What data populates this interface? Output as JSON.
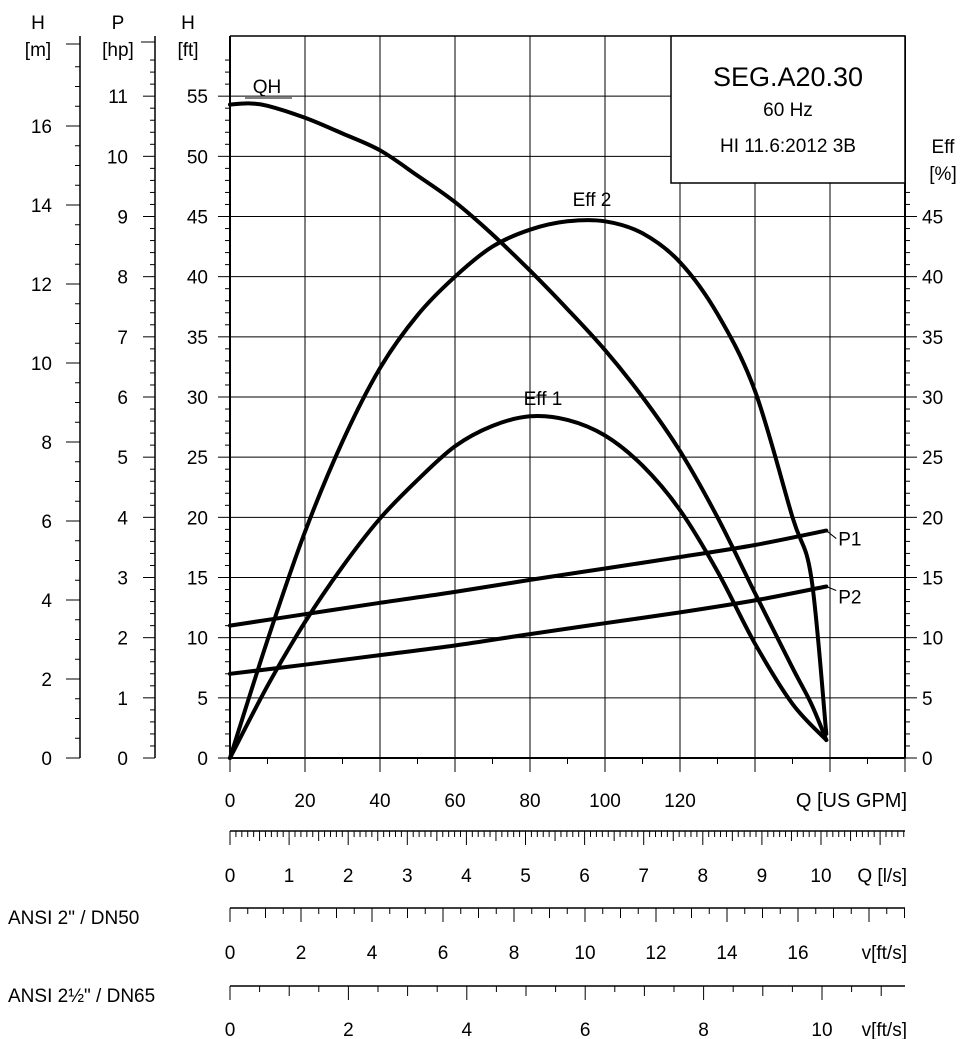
{
  "chart_data": {
    "type": "line",
    "title": "SEG.A20.30",
    "frequency": "60 Hz",
    "standard": "HI 11.6:2012 3B",
    "grid": true,
    "x": {
      "label": "Q [US GPM]",
      "ticks": [
        "0",
        "20",
        "40",
        "60",
        "80",
        "100",
        "120"
      ],
      "range": [
        0,
        180
      ]
    },
    "y_left": {
      "label_symbol": "H",
      "label_unit": "[ft]",
      "ticks": [
        "0",
        "5",
        "10",
        "15",
        "20",
        "25",
        "30",
        "35",
        "40",
        "45",
        "50",
        "55"
      ],
      "range": [
        0,
        60
      ]
    },
    "y_meters": {
      "label_symbol": "H",
      "label_unit": "[m]",
      "ticks": [
        "0",
        "2",
        "4",
        "6",
        "8",
        "10",
        "12",
        "14",
        "16"
      ]
    },
    "y_power": {
      "label_symbol": "P",
      "label_unit": "[hp]",
      "ticks": [
        "0",
        "1",
        "2",
        "3",
        "4",
        "5",
        "6",
        "7",
        "8",
        "9",
        "10",
        "11"
      ],
      "range": [
        0,
        12
      ]
    },
    "y_right": {
      "label_symbol": "Eff",
      "label_unit": "[%]",
      "ticks": [
        "0",
        "5",
        "10",
        "15",
        "20",
        "25",
        "30",
        "35",
        "40",
        "45"
      ],
      "range": [
        0,
        60
      ]
    },
    "series": [
      {
        "name": "QH",
        "axis": "ft",
        "x": [
          0,
          5,
          10,
          20,
          30,
          40,
          50,
          60,
          70,
          80,
          90,
          100,
          110,
          120,
          130,
          140,
          150,
          155,
          159
        ],
        "y": [
          54.3,
          54.4,
          54.2,
          53.2,
          51.9,
          50.5,
          48.4,
          46.2,
          43.5,
          40.5,
          37.3,
          33.9,
          30.0,
          25.5,
          20.0,
          13.7,
          7.5,
          4.5,
          1.5
        ]
      },
      {
        "name": "Eff 1",
        "axis": "percent",
        "x": [
          0,
          10,
          20,
          30,
          40,
          50,
          60,
          70,
          80,
          90,
          100,
          110,
          120,
          130,
          140,
          150,
          159
        ],
        "y": [
          0,
          6,
          11.3,
          15.9,
          19.9,
          23.1,
          25.9,
          27.6,
          28.4,
          28.1,
          26.8,
          24.3,
          20.6,
          15.5,
          9.5,
          4.5,
          1.5
        ]
      },
      {
        "name": "Eff 2",
        "axis": "percent",
        "x": [
          0,
          10,
          20,
          30,
          40,
          50,
          60,
          70,
          80,
          90,
          100,
          110,
          120,
          130,
          140,
          150,
          155,
          159
        ],
        "y": [
          0,
          9.8,
          18.8,
          26.3,
          32.4,
          36.8,
          40.0,
          42.5,
          43.9,
          44.6,
          44.6,
          43.6,
          41.2,
          36.9,
          30.5,
          20.0,
          15.0,
          2.0
        ]
      },
      {
        "name": "P1",
        "axis": "hp",
        "x": [
          0,
          20,
          40,
          60,
          80,
          100,
          120,
          140,
          159
        ],
        "y": [
          2.2,
          2.39,
          2.58,
          2.76,
          2.96,
          3.15,
          3.34,
          3.54,
          3.78
        ]
      },
      {
        "name": "P2",
        "axis": "hp",
        "x": [
          0,
          20,
          40,
          60,
          80,
          100,
          120,
          140,
          159
        ],
        "y": [
          1.4,
          1.55,
          1.71,
          1.87,
          2.06,
          2.24,
          2.42,
          2.62,
          2.85
        ]
      }
    ],
    "aux_scales": [
      {
        "name": "Q [l/s]",
        "label": "Q [l/s]",
        "ticks": [
          "0",
          "1",
          "2",
          "3",
          "4",
          "5",
          "6",
          "7",
          "8",
          "9",
          "10"
        ]
      },
      {
        "name": "ANSI 2\" / DN50",
        "label": "ANSI 2\" / DN50",
        "unit": "v[ft/s]",
        "ticks": [
          "0",
          "2",
          "4",
          "6",
          "8",
          "10",
          "12",
          "14",
          "16"
        ]
      },
      {
        "name": "ANSI 2½\" / DN65",
        "label": "ANSI 2½\" / DN65",
        "unit": "v[ft/s]",
        "ticks": [
          "0",
          "2",
          "4",
          "6",
          "8",
          "10"
        ]
      }
    ]
  }
}
